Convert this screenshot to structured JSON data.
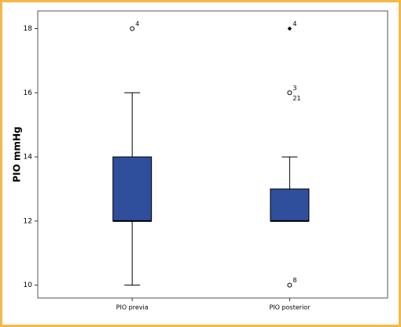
{
  "chart_data": {
    "type": "box",
    "y_label": "PIO mmHg",
    "categories": [
      "PIO previa",
      "PIO posterior"
    ],
    "color": "#2f4e9c",
    "ylim": [
      9.6,
      18.55
    ],
    "yticks": [
      10,
      12,
      14,
      16,
      18
    ],
    "boxes": [
      {
        "min": 10,
        "q1": 12,
        "median": 12,
        "q3": 14,
        "max": 16,
        "outliers": [
          {
            "value": 18,
            "label": "4",
            "marker": "circle"
          }
        ]
      },
      {
        "min": 12,
        "q1": 12,
        "median": 12,
        "q3": 13,
        "max": 14,
        "outliers": [
          {
            "value": 18,
            "label": "4",
            "marker": "star"
          },
          {
            "value": 16,
            "label": "3",
            "marker": "circle"
          },
          {
            "value": 16,
            "label": "21",
            "marker": "circle"
          },
          {
            "value": 10,
            "label": "8",
            "marker": "circle"
          }
        ]
      }
    ]
  }
}
